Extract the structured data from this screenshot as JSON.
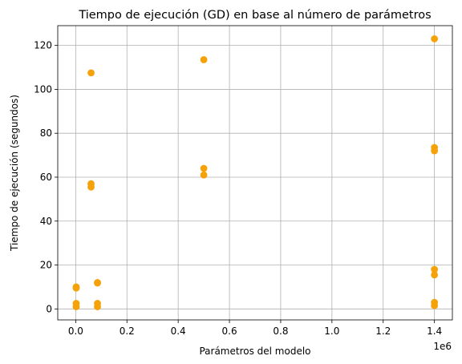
{
  "chart_data": {
    "type": "scatter",
    "title": "Tiempo de ejecución (GD) en base al número de parámetros",
    "xlabel": "Parámetros del modelo",
    "ylabel": "Tiempo de ejecución (segundos)",
    "x_offset_label": "1e6",
    "xlim": [
      -0.07,
      1.47
    ],
    "ylim": [
      -5,
      129
    ],
    "xticks": [
      0.0,
      0.2,
      0.4,
      0.6,
      0.8,
      1.0,
      1.2,
      1.4
    ],
    "xtick_labels": [
      "0.0",
      "0.2",
      "0.4",
      "0.6",
      "0.8",
      "1.0",
      "1.2",
      "1.4"
    ],
    "yticks": [
      0,
      20,
      40,
      60,
      80,
      100,
      120
    ],
    "ytick_labels": [
      "0",
      "20",
      "40",
      "60",
      "80",
      "100",
      "120"
    ],
    "grid": true,
    "marker_color": "#f5a20a",
    "series": [
      {
        "points": [
          {
            "x": 0.002,
            "y": 1.0
          },
          {
            "x": 0.002,
            "y": 2.5
          },
          {
            "x": 0.002,
            "y": 9.5
          },
          {
            "x": 0.002,
            "y": 10.0
          },
          {
            "x": 0.06,
            "y": 107.5
          },
          {
            "x": 0.06,
            "y": 57.0
          },
          {
            "x": 0.06,
            "y": 55.5
          },
          {
            "x": 0.085,
            "y": 12.0
          },
          {
            "x": 0.085,
            "y": 11.8
          },
          {
            "x": 0.085,
            "y": 2.5
          },
          {
            "x": 0.085,
            "y": 1.0
          },
          {
            "x": 0.5,
            "y": 113.5
          },
          {
            "x": 0.5,
            "y": 64.0
          },
          {
            "x": 0.5,
            "y": 61.0
          },
          {
            "x": 1.4,
            "y": 123.0
          },
          {
            "x": 1.4,
            "y": 73.5
          },
          {
            "x": 1.4,
            "y": 72.0
          },
          {
            "x": 1.4,
            "y": 18.0
          },
          {
            "x": 1.4,
            "y": 15.5
          },
          {
            "x": 1.4,
            "y": 3.0
          },
          {
            "x": 1.4,
            "y": 1.5
          }
        ]
      }
    ]
  }
}
